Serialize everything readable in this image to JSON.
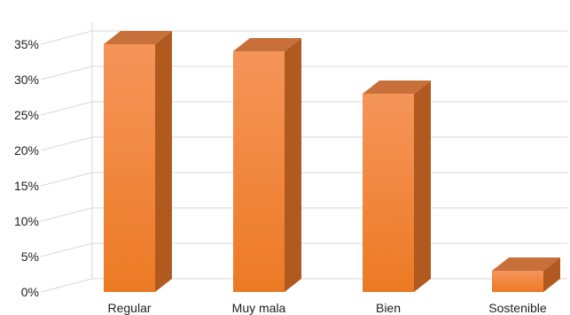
{
  "chart_data": {
    "type": "bar",
    "style": "3d-column",
    "categories": [
      "Regular",
      "Muy mala",
      "Bien",
      "Sostenible"
    ],
    "values": [
      35,
      34,
      28,
      3
    ],
    "unit": "%",
    "ylim": [
      0,
      35
    ],
    "yticks": [
      "0%",
      "5%",
      "10%",
      "15%",
      "20%",
      "25%",
      "30%",
      "35%"
    ],
    "title": "",
    "xlabel": "",
    "ylabel": "",
    "grid": true,
    "legend": "none",
    "colors": {
      "bar_top": "#f5955a",
      "bar_bottom": "#ec7a24",
      "bar_side": "#b05a20",
      "bar_cap": "#c8703a",
      "grid": "#d9d9d9",
      "axis_text": "#222222"
    }
  }
}
